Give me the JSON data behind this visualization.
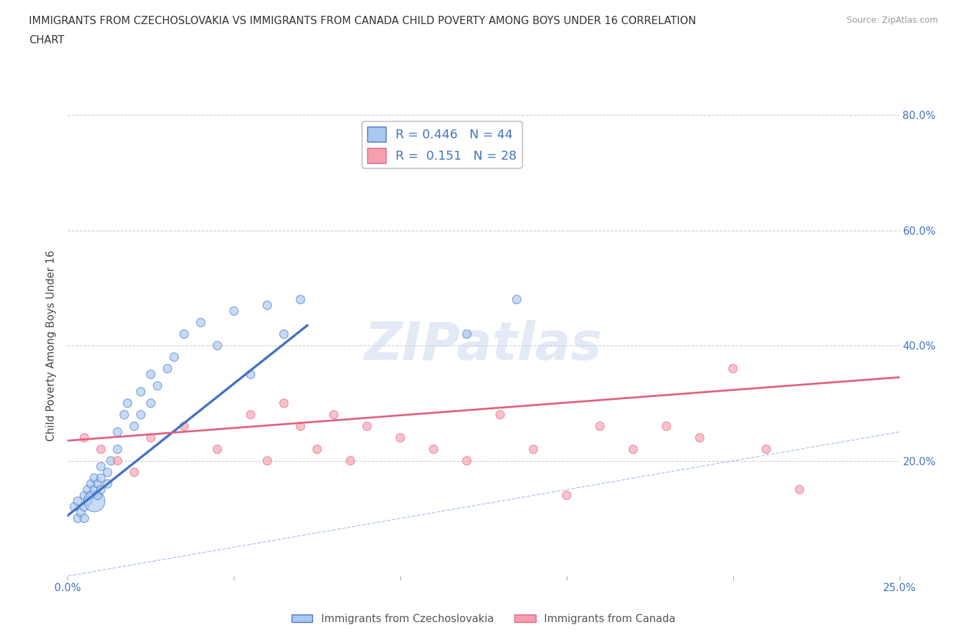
{
  "title_line1": "IMMIGRANTS FROM CZECHOSLOVAKIA VS IMMIGRANTS FROM CANADA CHILD POVERTY AMONG BOYS UNDER 16 CORRELATION",
  "title_line2": "CHART",
  "source": "Source: ZipAtlas.com",
  "ylabel": "Child Poverty Among Boys Under 16",
  "watermark": "ZIPatlas",
  "R_czech": 0.446,
  "N_czech": 44,
  "R_canada": 0.151,
  "N_canada": 28,
  "xlim": [
    0.0,
    0.25
  ],
  "ylim": [
    0.0,
    0.8
  ],
  "color_czech": "#a8c8f0",
  "color_canada": "#f5a0b0",
  "color_line_czech": "#4472c4",
  "color_line_canada": "#e06080",
  "color_diag": "#a0b8e0",
  "czech_x": [
    0.002,
    0.003,
    0.003,
    0.004,
    0.005,
    0.005,
    0.005,
    0.006,
    0.006,
    0.007,
    0.007,
    0.008,
    0.008,
    0.008,
    0.009,
    0.009,
    0.01,
    0.01,
    0.01,
    0.012,
    0.012,
    0.013,
    0.015,
    0.015,
    0.017,
    0.018,
    0.02,
    0.022,
    0.022,
    0.025,
    0.025,
    0.027,
    0.03,
    0.032,
    0.035,
    0.04,
    0.045,
    0.05,
    0.055,
    0.06,
    0.065,
    0.07,
    0.12,
    0.135
  ],
  "czech_y": [
    0.12,
    0.1,
    0.13,
    0.11,
    0.14,
    0.12,
    0.1,
    0.13,
    0.15,
    0.14,
    0.16,
    0.13,
    0.15,
    0.17,
    0.14,
    0.16,
    0.15,
    0.17,
    0.19,
    0.16,
    0.18,
    0.2,
    0.22,
    0.25,
    0.28,
    0.3,
    0.26,
    0.28,
    0.32,
    0.3,
    0.35,
    0.33,
    0.36,
    0.38,
    0.42,
    0.44,
    0.4,
    0.46,
    0.35,
    0.47,
    0.42,
    0.48,
    0.42,
    0.48
  ],
  "czech_size": [
    80,
    80,
    80,
    80,
    80,
    80,
    80,
    80,
    80,
    80,
    80,
    80,
    80,
    80,
    80,
    80,
    80,
    80,
    80,
    80,
    80,
    80,
    80,
    80,
    80,
    80,
    80,
    80,
    80,
    80,
    80,
    80,
    80,
    80,
    80,
    80,
    80,
    80,
    80,
    80,
    80,
    80,
    80,
    80
  ],
  "czech_size_override": {
    "11": 500
  },
  "canada_x": [
    0.005,
    0.01,
    0.015,
    0.02,
    0.025,
    0.035,
    0.045,
    0.055,
    0.06,
    0.065,
    0.07,
    0.075,
    0.08,
    0.085,
    0.09,
    0.1,
    0.11,
    0.12,
    0.13,
    0.14,
    0.15,
    0.16,
    0.17,
    0.18,
    0.19,
    0.2,
    0.21,
    0.22
  ],
  "canada_y": [
    0.24,
    0.22,
    0.2,
    0.18,
    0.24,
    0.26,
    0.22,
    0.28,
    0.2,
    0.3,
    0.26,
    0.22,
    0.28,
    0.2,
    0.26,
    0.24,
    0.22,
    0.2,
    0.28,
    0.22,
    0.14,
    0.26,
    0.22,
    0.26,
    0.24,
    0.36,
    0.22,
    0.15
  ],
  "canada_size": [
    80,
    80,
    80,
    80,
    80,
    80,
    80,
    80,
    80,
    80,
    80,
    80,
    80,
    80,
    80,
    80,
    80,
    80,
    80,
    80,
    80,
    80,
    80,
    80,
    80,
    80,
    80,
    80
  ],
  "czech_line_x0": 0.0,
  "czech_line_y0": 0.105,
  "czech_line_x1": 0.072,
  "czech_line_y1": 0.435,
  "canada_line_x0": 0.0,
  "canada_line_y0": 0.235,
  "canada_line_x1": 0.25,
  "canada_line_y1": 0.345,
  "legend_label_czech": "Immigrants from Czechoslovakia",
  "legend_label_canada": "Immigrants from Canada"
}
